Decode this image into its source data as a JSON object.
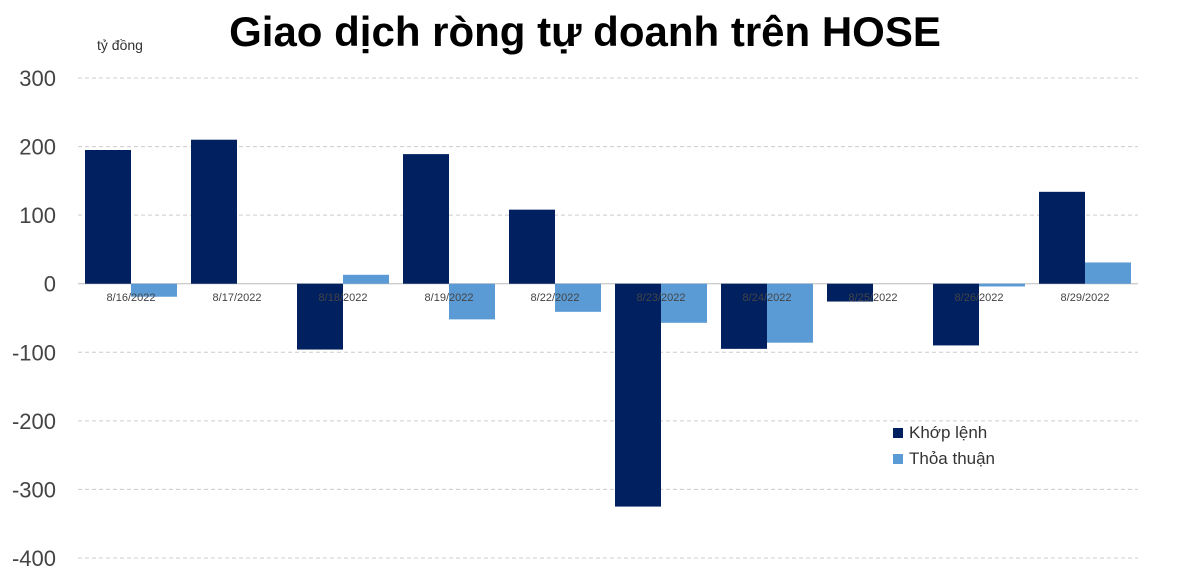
{
  "chart_data": {
    "type": "bar",
    "title": "Giao dịch ròng tự doanh trên HOSE",
    "ylabel": "tỷ đồng",
    "ylim": [
      -400,
      300
    ],
    "yticks": [
      300,
      200,
      100,
      0,
      -100,
      -200,
      -300,
      -400
    ],
    "grid": true,
    "legend_position": "bottom-right",
    "categories": [
      "8/16/2022",
      "8/17/2022",
      "8/18/2022",
      "8/19/2022",
      "8/22/2022",
      "8/23/2022",
      "8/24/2022",
      "8/25/2022",
      "8/26/2022",
      "8/29/2022"
    ],
    "series": [
      {
        "name": "Khớp lệnh",
        "color": "#002060",
        "values": [
          195,
          210,
          -96,
          189,
          108,
          -325,
          -95,
          -26,
          -90,
          134
        ]
      },
      {
        "name": "Thỏa thuận",
        "color": "#5B9BD5",
        "values": [
          -19,
          0,
          13,
          -52,
          -41,
          -57,
          -86,
          0,
          -4,
          31
        ]
      }
    ]
  }
}
